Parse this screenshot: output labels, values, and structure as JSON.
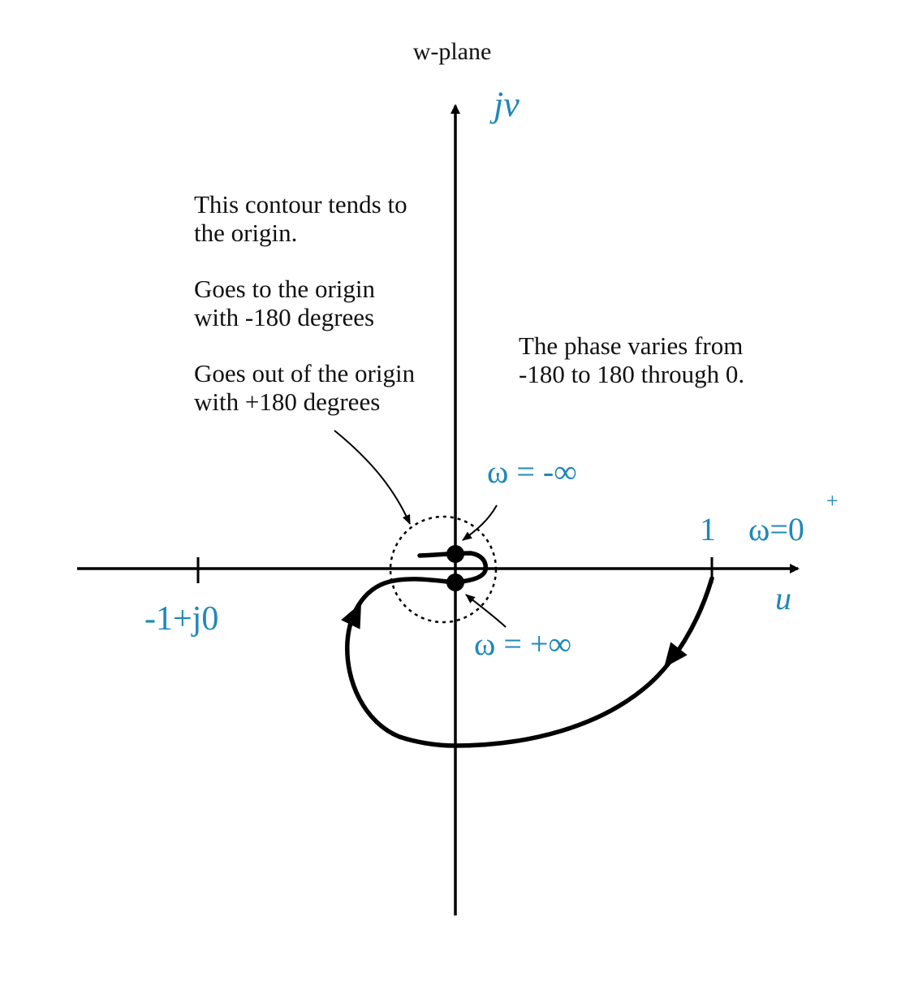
{
  "title": "w-plane",
  "axes": {
    "horizontal_label": "u",
    "vertical_label": "jv"
  },
  "tick_labels": {
    "minus_one": "-1+j0",
    "one": "1"
  },
  "annotations": {
    "contour_origin": [
      "This contour tends to",
      "the origin."
    ],
    "goes_to_origin": [
      "Goes to the origin",
      "with -180 degrees"
    ],
    "goes_out_origin": [
      "Goes out of the origin",
      "with +180 degrees"
    ],
    "phase_varies": [
      "The phase varies from",
      "-180 to 180 through 0."
    ]
  },
  "omega_labels": {
    "minus_inf": "ω = -∞",
    "plus_inf": "ω = +∞",
    "zero_plus_base": "ω=0",
    "zero_plus_sup": "+"
  },
  "colors": {
    "accent": "#1f88b8",
    "ink": "#000000"
  }
}
